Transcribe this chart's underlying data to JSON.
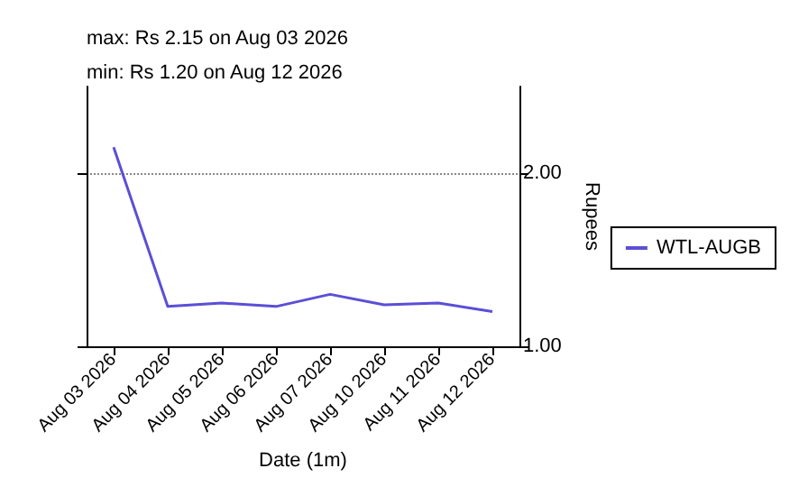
{
  "chart_data": {
    "type": "line",
    "xlabel": "Date (1m)",
    "ylabel": "Rupees",
    "annotations": [
      "max: Rs 2.15 on Aug 03 2026",
      "min: Rs 1.20 on Aug 12 2026"
    ],
    "categories": [
      "Aug 03 2026",
      "Aug 04 2026",
      "Aug 05 2026",
      "Aug 06 2026",
      "Aug 07 2026",
      "Aug 10 2026",
      "Aug 11 2026",
      "Aug 12 2026"
    ],
    "series": [
      {
        "name": "WTL-AUGB",
        "color": "#5b4fd6",
        "values": [
          2.15,
          1.23,
          1.25,
          1.23,
          1.3,
          1.24,
          1.25,
          1.2
        ]
      }
    ],
    "ylim": [
      1,
      2.5
    ],
    "yticks": [
      {
        "value": 1,
        "label": "1.00"
      },
      {
        "value": 2,
        "label": "2.00"
      }
    ],
    "grid": "y",
    "legend": "right",
    "marker": "none",
    "line_style": "solid"
  }
}
